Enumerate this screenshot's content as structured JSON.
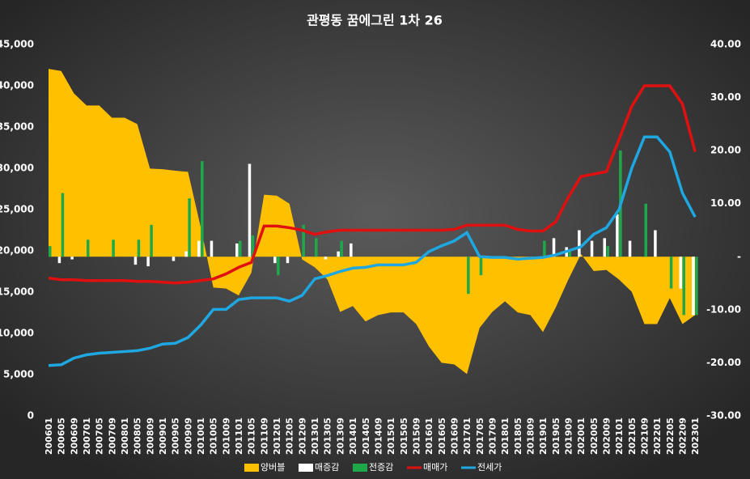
{
  "chart_data": {
    "type": "combo",
    "title": "관평동 꿈에그린 1차 26",
    "categories": [
      "200601",
      "200605",
      "200609",
      "200701",
      "200705",
      "200709",
      "200801",
      "200805",
      "200809",
      "200901",
      "200905",
      "200909",
      "201001",
      "201005",
      "201009",
      "201101",
      "201105",
      "201109",
      "201201",
      "201205",
      "201209",
      "201301",
      "201305",
      "201309",
      "201401",
      "201405",
      "201409",
      "201501",
      "201505",
      "201509",
      "201601",
      "201605",
      "201609",
      "201701",
      "201705",
      "201709",
      "201801",
      "201805",
      "201809",
      "201901",
      "201905",
      "201909",
      "202001",
      "202005",
      "202009",
      "202101",
      "202105",
      "202109",
      "202201",
      "202205",
      "202209",
      "202301"
    ],
    "series": [
      {
        "name": "양버블",
        "kind": "area",
        "axis": "y2",
        "color": "#ffc000",
        "values": [
          35.4,
          35,
          30.8,
          28.5,
          28.5,
          26.2,
          26.2,
          25,
          16.6,
          16.5,
          16.2,
          16,
          5.6,
          -5.8,
          -6,
          -7.3,
          -3,
          11.7,
          11.5,
          10,
          -0.5,
          -2,
          -4.3,
          -10.4,
          -9.3,
          -12.2,
          -11,
          -10.5,
          -10.5,
          -12.7,
          -16.9,
          -20,
          -20.3,
          -22.1,
          -13.4,
          -10.4,
          -8.4,
          -10.5,
          -11,
          -14.2,
          -9.6,
          -4.3,
          0.5,
          -2.7,
          -2.5,
          -4.3,
          -6.6,
          -12.7,
          -12.7,
          -7.8,
          -12.7,
          -11
        ]
      },
      {
        "name": "매증감",
        "kind": "bar",
        "axis": "y2",
        "color": "#ffffff",
        "values": [
          0,
          -1.2,
          -0.5,
          0,
          0,
          0,
          0,
          -1.5,
          -1.8,
          0,
          -0.8,
          1,
          3,
          3,
          0,
          2.5,
          17.5,
          0,
          -1.2,
          -1.2,
          0,
          0,
          -0.5,
          1,
          2.5,
          0,
          0,
          0,
          0,
          0,
          0,
          0,
          0,
          0,
          0,
          0,
          0,
          0,
          0,
          0,
          3.5,
          1.8,
          5,
          3,
          3.5,
          8,
          3,
          0,
          5,
          0,
          -6,
          -11
        ]
      },
      {
        "name": "전증감",
        "kind": "bar",
        "axis": "y2",
        "color": "#1fa84a",
        "values": [
          2,
          12,
          0,
          3.2,
          0,
          3.2,
          0,
          3.2,
          6,
          0,
          0,
          11,
          18,
          0,
          0,
          3,
          4,
          0,
          -3.5,
          0,
          6,
          3.5,
          0,
          3,
          0,
          0,
          0,
          0,
          0,
          0,
          0,
          0,
          0,
          -7,
          -3.5,
          0,
          0,
          0,
          0,
          3,
          0,
          1,
          0,
          0,
          2,
          20,
          0,
          10,
          0,
          -6,
          -11,
          -11
        ]
      },
      {
        "name": "매매가",
        "kind": "line",
        "color": "#e01010",
        "values": [
          16700,
          16500,
          16500,
          16400,
          16400,
          16400,
          16400,
          16300,
          16300,
          16200,
          16100,
          16200,
          16400,
          16600,
          17200,
          18000,
          18600,
          23000,
          23000,
          22800,
          22500,
          22000,
          22300,
          22500,
          22500,
          22500,
          22500,
          22500,
          22500,
          22500,
          22500,
          22500,
          22600,
          23100,
          23100,
          23100,
          23100,
          22600,
          22400,
          22400,
          23500,
          26500,
          29000,
          29300,
          29600,
          33500,
          37500,
          40000,
          40000,
          40000,
          37800,
          32000
        ]
      },
      {
        "name": "전세가",
        "kind": "line",
        "color": "#1ea7e1",
        "values": [
          6100,
          6200,
          7000,
          7400,
          7600,
          7700,
          7800,
          7900,
          8200,
          8700,
          8800,
          9500,
          11000,
          12900,
          12900,
          14100,
          14300,
          14300,
          14300,
          13900,
          14600,
          16600,
          17000,
          17500,
          17900,
          18000,
          18300,
          18300,
          18300,
          18600,
          19900,
          20600,
          21200,
          22200,
          19300,
          19200,
          19200,
          19000,
          19100,
          19200,
          19500,
          20000,
          20500,
          22000,
          22800,
          25000,
          30000,
          33800,
          33800,
          32000,
          27000,
          24100
        ]
      }
    ],
    "ylim": [
      0,
      45000
    ],
    "yticks": [
      0,
      {
        "value": 5000,
        "label": "5,000"
      },
      {
        "value": 10000,
        "label": "10,000"
      },
      {
        "value": 15000,
        "label": "15,000"
      },
      {
        "value": 20000,
        "label": "20,000"
      },
      {
        "value": 25000,
        "label": "25,000"
      },
      {
        "value": 30000,
        "label": "30,000"
      },
      {
        "value": 35000,
        "label": "35,000"
      },
      {
        "value": 40000,
        "label": "40,000"
      },
      {
        "value": 45000,
        "label": "45,000"
      }
    ],
    "y2lim": [
      -30,
      40
    ],
    "y2ticks": [
      {
        "value": -30,
        "label": "-30.00"
      },
      {
        "value": -20,
        "label": "-20.00"
      },
      {
        "value": -10,
        "label": "-10.00"
      },
      {
        "value": 0,
        "label": "-"
      },
      {
        "value": 10,
        "label": "10.00"
      },
      {
        "value": 20,
        "label": "20.00"
      },
      {
        "value": 30,
        "label": "30.00"
      },
      {
        "value": 40,
        "label": "40.00"
      }
    ],
    "legend": "bottom"
  }
}
